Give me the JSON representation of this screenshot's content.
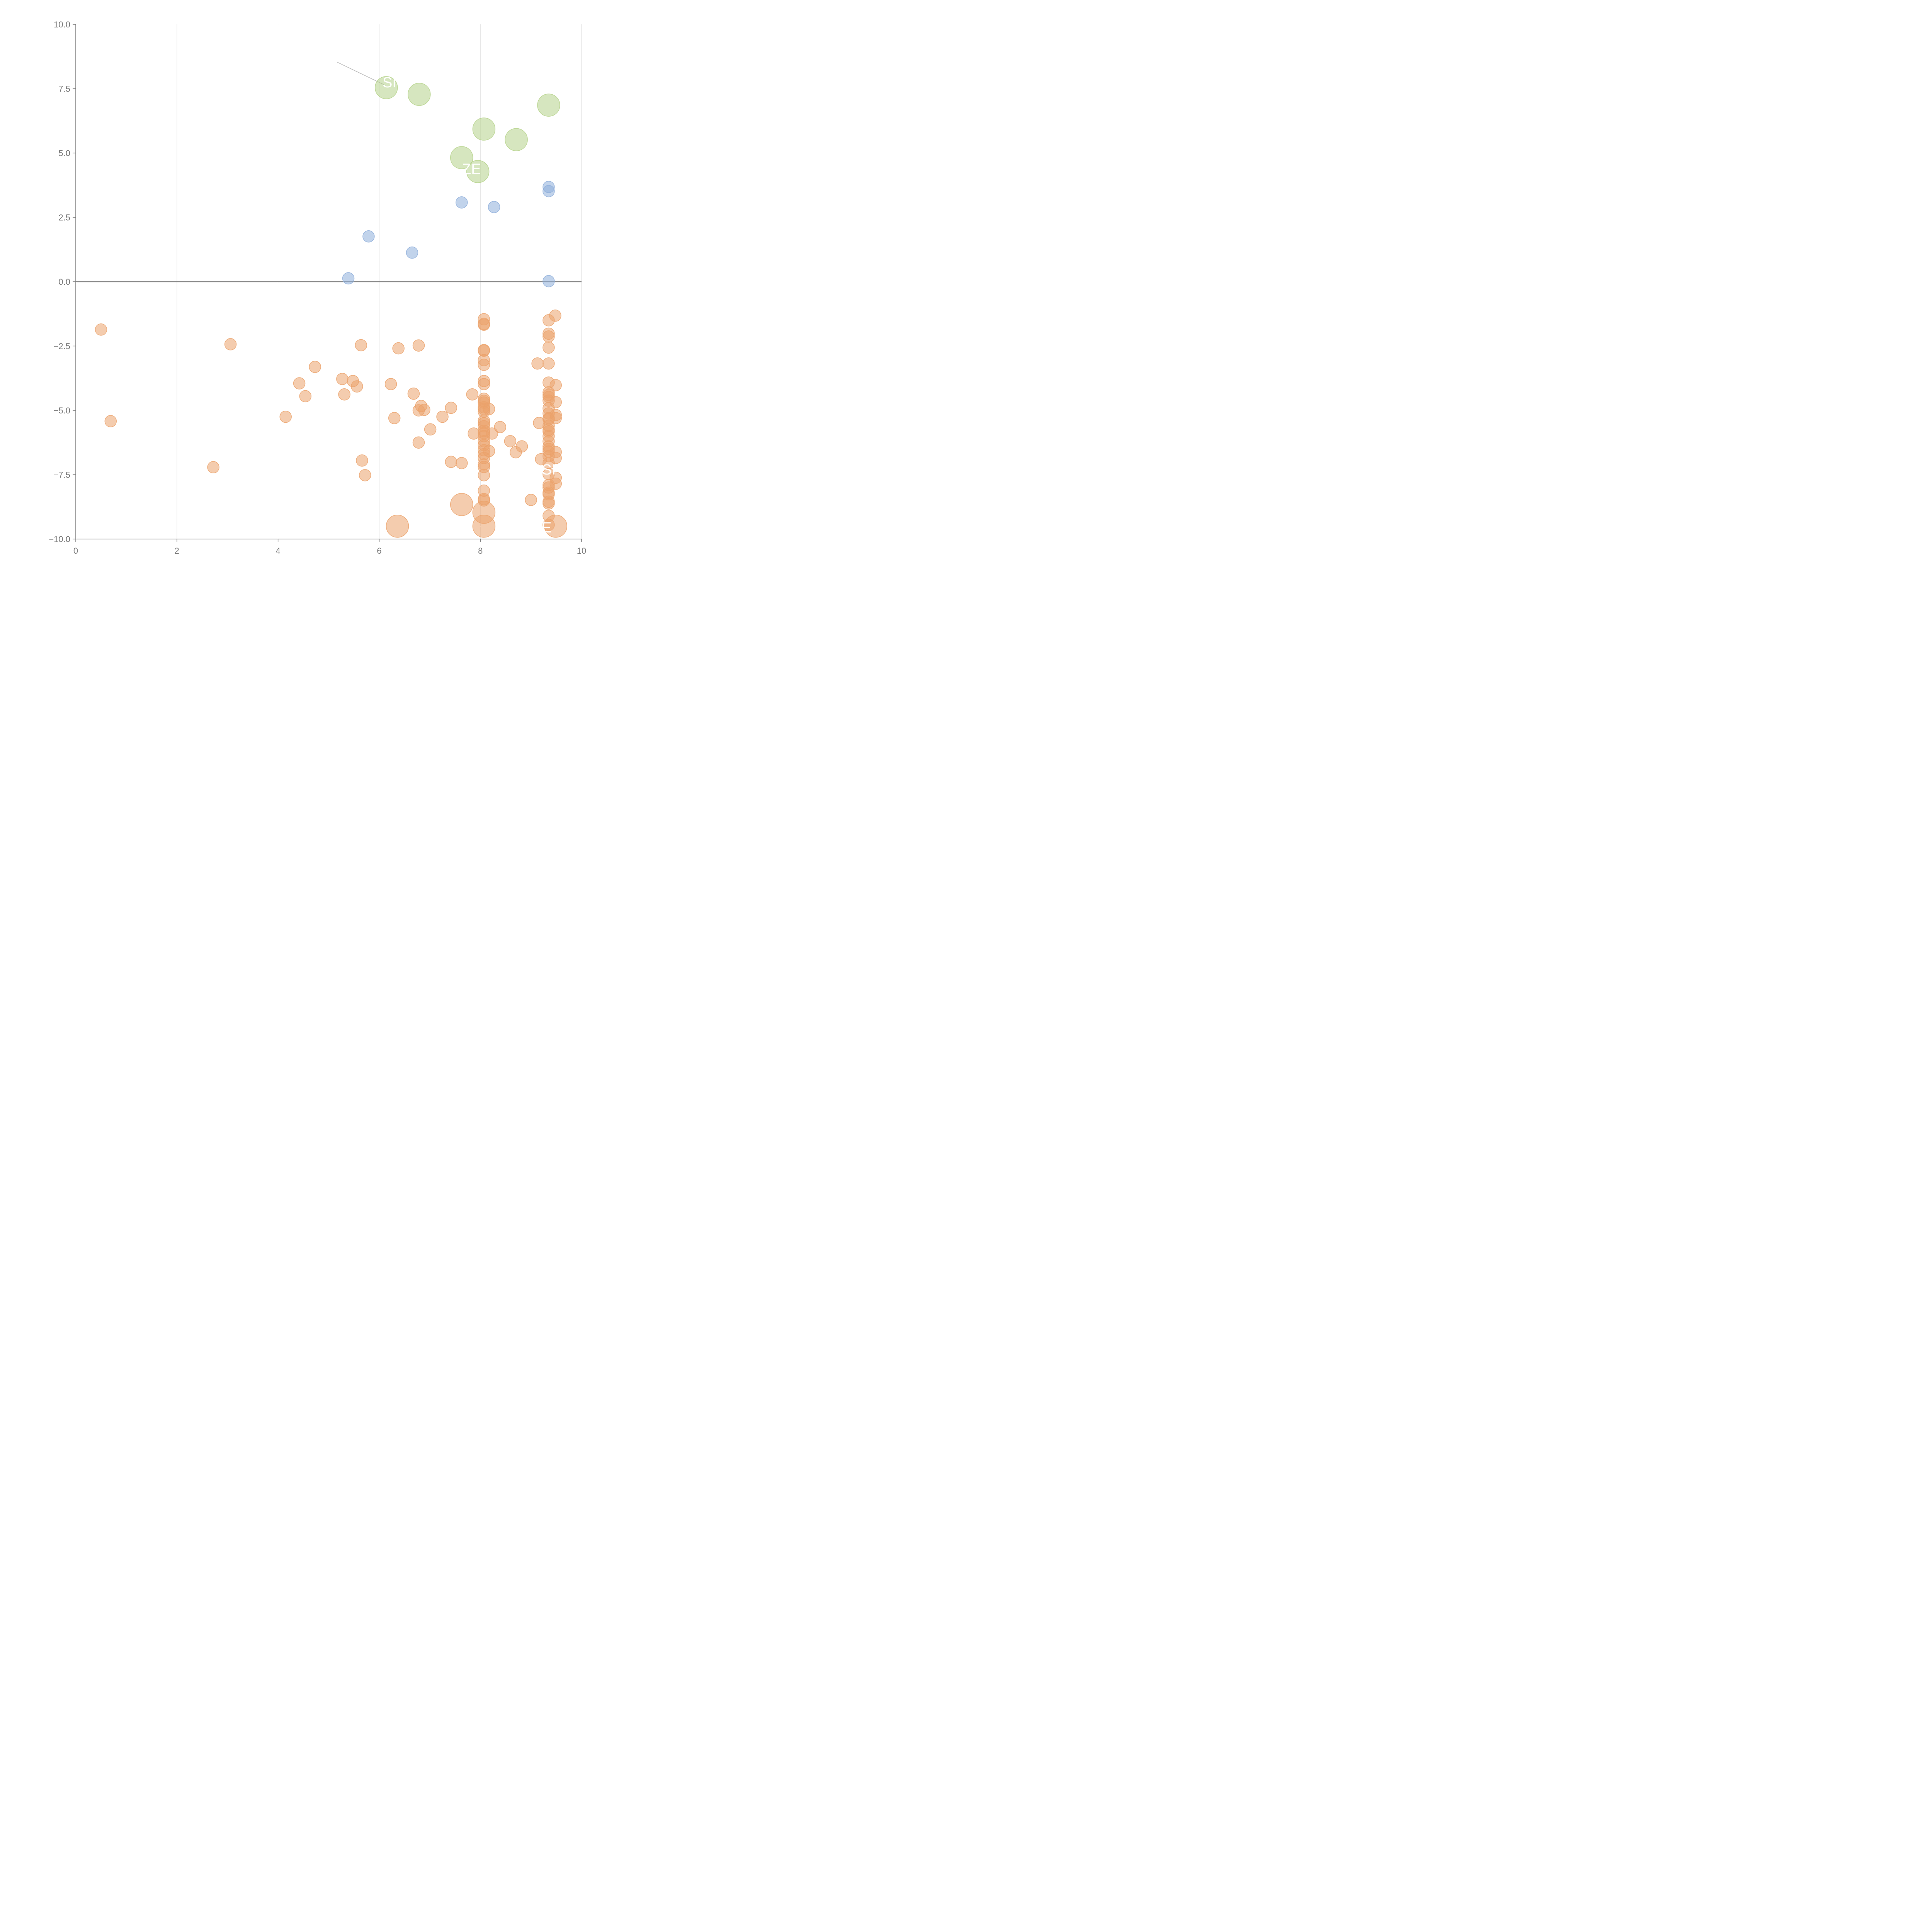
{
  "chart_data": {
    "type": "scatter",
    "title": "",
    "xlabel": "",
    "ylabel": "",
    "xlim": [
      0,
      10
    ],
    "ylim": [
      -10,
      10
    ],
    "x_ticks": [
      0,
      2,
      4,
      6,
      8,
      10
    ],
    "x_tick_labels": [
      "0",
      "2",
      "4",
      "6",
      "8",
      "10"
    ],
    "y_ticks": [
      10,
      7.5,
      5,
      2.5,
      0,
      -2.5,
      -5,
      -7.5,
      -10
    ],
    "y_tick_labels": [
      "10.0",
      "7.5",
      "5.0",
      "2.5",
      "0.0",
      "−2.5",
      "−5.0",
      "−7.5",
      "−10.0"
    ],
    "grid": "vertical",
    "zero_line": 0,
    "legend": "none",
    "colors": {
      "green": "#b5d28a",
      "blue": "#8eaedb",
      "orange": "#eba26b",
      "axis": "#777777",
      "grid": "#dddddd",
      "zero_line": "#888888",
      "callout_line": "#bbbbbb",
      "callout_text": "#ffffff"
    },
    "series": [
      {
        "color_key": "green",
        "size": "large",
        "points": [
          [
            6.14,
            7.54
          ],
          [
            6.79,
            7.28
          ],
          [
            9.35,
            6.86
          ],
          [
            8.07,
            5.93
          ],
          [
            8.71,
            5.52
          ],
          [
            7.63,
            4.82
          ],
          [
            7.95,
            4.28
          ]
        ]
      },
      {
        "color_key": "blue",
        "size": "small",
        "points": [
          [
            9.35,
            3.68
          ],
          [
            9.35,
            3.52
          ],
          [
            7.63,
            3.08
          ],
          [
            8.27,
            2.9
          ],
          [
            5.79,
            1.76
          ],
          [
            6.65,
            1.13
          ],
          [
            5.39,
            0.13
          ],
          [
            9.35,
            0.02
          ]
        ]
      },
      {
        "color_key": "orange",
        "size": "small",
        "points": [
          [
            0.5,
            -1.86
          ],
          [
            0.69,
            -5.42
          ],
          [
            2.72,
            -7.21
          ],
          [
            3.06,
            -2.43
          ],
          [
            4.15,
            -5.25
          ],
          [
            4.42,
            -3.95
          ],
          [
            4.54,
            -4.45
          ],
          [
            4.73,
            -3.31
          ],
          [
            5.27,
            -3.78
          ],
          [
            5.31,
            -4.38
          ],
          [
            5.48,
            -3.86
          ],
          [
            5.56,
            -4.07
          ],
          [
            5.64,
            -2.47
          ],
          [
            5.66,
            -6.95
          ],
          [
            5.72,
            -7.52
          ],
          [
            6.23,
            -3.98
          ],
          [
            6.3,
            -5.3
          ],
          [
            6.38,
            -2.59
          ],
          [
            6.68,
            -4.35
          ],
          [
            6.78,
            -5.0
          ],
          [
            6.78,
            -6.25
          ],
          [
            6.78,
            -2.48
          ],
          [
            6.83,
            -4.83
          ],
          [
            6.89,
            -4.98
          ],
          [
            7.01,
            -5.74
          ],
          [
            7.25,
            -5.25
          ],
          [
            7.42,
            -4.9
          ],
          [
            7.42,
            -7.0
          ],
          [
            7.63,
            -7.05
          ],
          [
            7.84,
            -4.38
          ],
          [
            7.87,
            -5.9
          ],
          [
            8.07,
            -1.46
          ],
          [
            8.07,
            -1.64
          ],
          [
            8.07,
            -1.67
          ],
          [
            8.07,
            -2.66
          ],
          [
            8.07,
            -2.68
          ],
          [
            8.07,
            -3.05
          ],
          [
            8.07,
            -3.23
          ],
          [
            8.07,
            -3.86
          ],
          [
            8.07,
            -3.98
          ],
          [
            8.07,
            -4.55
          ],
          [
            8.07,
            -4.63
          ],
          [
            8.07,
            -4.7
          ],
          [
            8.07,
            -4.88
          ],
          [
            8.07,
            -4.95
          ],
          [
            8.07,
            -5.05
          ],
          [
            8.07,
            -5.4
          ],
          [
            8.07,
            -5.5
          ],
          [
            8.07,
            -5.62
          ],
          [
            8.07,
            -5.8
          ],
          [
            8.07,
            -5.88
          ],
          [
            8.07,
            -6.0
          ],
          [
            8.07,
            -6.2
          ],
          [
            8.07,
            -6.35
          ],
          [
            8.07,
            -6.55
          ],
          [
            8.07,
            -6.7
          ],
          [
            8.07,
            -6.85
          ],
          [
            8.07,
            -7.1
          ],
          [
            8.07,
            -7.2
          ],
          [
            8.07,
            -7.52
          ],
          [
            8.07,
            -8.12
          ],
          [
            8.07,
            -8.45
          ],
          [
            8.07,
            -8.5
          ],
          [
            8.17,
            -4.95
          ],
          [
            8.17,
            -6.58
          ],
          [
            8.23,
            -5.9
          ],
          [
            8.39,
            -5.65
          ],
          [
            8.59,
            -6.2
          ],
          [
            8.7,
            -6.63
          ],
          [
            8.82,
            -6.4
          ],
          [
            9.0,
            -8.48
          ],
          [
            9.13,
            -3.18
          ],
          [
            9.16,
            -5.49
          ],
          [
            9.2,
            -6.9
          ],
          [
            9.35,
            -1.5
          ],
          [
            9.35,
            -2.02
          ],
          [
            9.35,
            -2.13
          ],
          [
            9.35,
            -2.56
          ],
          [
            9.35,
            -3.18
          ],
          [
            9.35,
            -3.92
          ],
          [
            9.35,
            -4.3
          ],
          [
            9.35,
            -4.4
          ],
          [
            9.35,
            -4.48
          ],
          [
            9.35,
            -4.62
          ],
          [
            9.35,
            -4.92
          ],
          [
            9.35,
            -5.12
          ],
          [
            9.35,
            -5.3
          ],
          [
            9.35,
            -5.35
          ],
          [
            9.35,
            -5.6
          ],
          [
            9.35,
            -5.75
          ],
          [
            9.35,
            -5.82
          ],
          [
            9.35,
            -6.0
          ],
          [
            9.35,
            -6.2
          ],
          [
            9.35,
            -6.4
          ],
          [
            9.35,
            -6.5
          ],
          [
            9.35,
            -6.6
          ],
          [
            9.35,
            -6.78
          ],
          [
            9.35,
            -7.05
          ],
          [
            9.35,
            -7.48
          ],
          [
            9.35,
            -7.9
          ],
          [
            9.35,
            -8.0
          ],
          [
            9.35,
            -8.2
          ],
          [
            9.35,
            -8.26
          ],
          [
            9.35,
            -8.55
          ],
          [
            9.35,
            -8.62
          ],
          [
            9.35,
            -9.1
          ],
          [
            9.35,
            -9.45
          ],
          [
            9.48,
            -1.32
          ],
          [
            9.49,
            -4.02
          ],
          [
            9.49,
            -4.68
          ],
          [
            9.49,
            -5.18
          ],
          [
            9.49,
            -5.3
          ],
          [
            9.49,
            -6.62
          ],
          [
            9.49,
            -6.85
          ],
          [
            9.49,
            -7.62
          ],
          [
            9.49,
            -7.85
          ]
        ]
      },
      {
        "color_key": "orange",
        "size": "large",
        "points": [
          [
            6.36,
            -9.5
          ],
          [
            7.63,
            -8.66
          ],
          [
            8.07,
            -8.96
          ],
          [
            8.07,
            -9.5
          ],
          [
            9.49,
            -9.5
          ]
        ]
      }
    ],
    "callout_lines": [
      [
        [
          5.17,
          8.53
        ],
        [
          6.1,
          7.65
        ]
      ],
      [
        [
          6.44,
          7.63
        ],
        [
          6.79,
          7.28
        ]
      ],
      [
        [
          9.35,
          7.2
        ],
        [
          9.35,
          6.86
        ]
      ],
      [
        [
          8.1,
          6.3
        ],
        [
          8.07,
          5.93
        ]
      ],
      [
        [
          8.9,
          5.62
        ],
        [
          8.71,
          5.52
        ]
      ],
      [
        [
          7.82,
          4.6
        ],
        [
          7.63,
          4.82
        ]
      ],
      [
        [
          8.12,
          -5.8
        ],
        [
          7.98,
          -7.2
        ]
      ],
      [
        [
          9.37,
          -7.15
        ],
        [
          9.3,
          -7.4
        ]
      ],
      [
        [
          7.78,
          -8.3
        ],
        [
          7.63,
          -8.66
        ]
      ],
      [
        [
          8.25,
          -8.75
        ],
        [
          8.07,
          -8.96
        ]
      ],
      [
        [
          7.82,
          -9.55
        ],
        [
          8.07,
          -9.5
        ]
      ],
      [
        [
          9.35,
          -9.45
        ],
        [
          9.49,
          -9.5
        ]
      ],
      [
        [
          6.15,
          -9.35
        ],
        [
          6.36,
          -9.5
        ]
      ]
    ],
    "callout_labels": [
      "SI",
      "ZE",
      "RSI",
      "E"
    ]
  }
}
